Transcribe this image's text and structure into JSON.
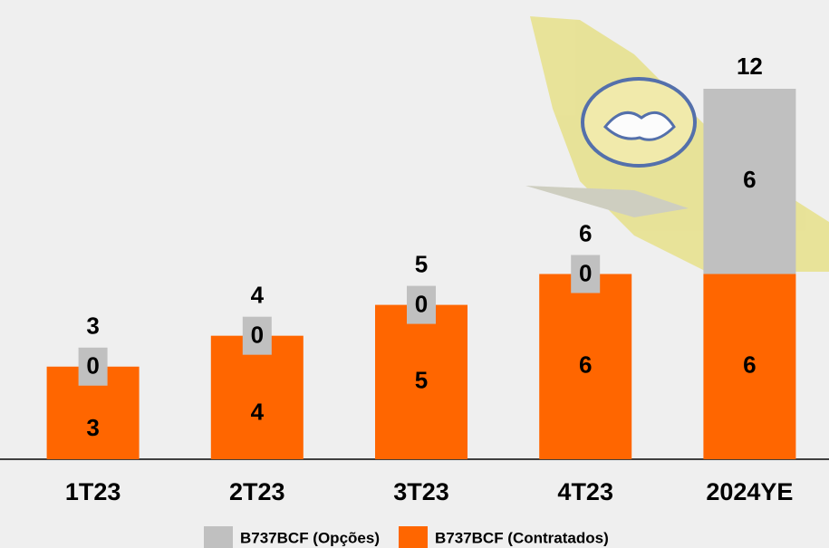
{
  "chart_data": {
    "type": "bar",
    "stacked": true,
    "categories": [
      "1T23",
      "2T23",
      "3T23",
      "4T23",
      "2024YE"
    ],
    "series": [
      {
        "name": "B737BCF (Contratados)",
        "color": "#ff6600",
        "values": [
          3,
          4,
          5,
          6,
          6
        ]
      },
      {
        "name": "B737BCF (Opções)",
        "color": "#c0c0c0",
        "values": [
          0,
          0,
          0,
          0,
          6
        ]
      }
    ],
    "totals": [
      3,
      4,
      5,
      6,
      12
    ],
    "ylim": [
      0,
      12
    ]
  }
}
